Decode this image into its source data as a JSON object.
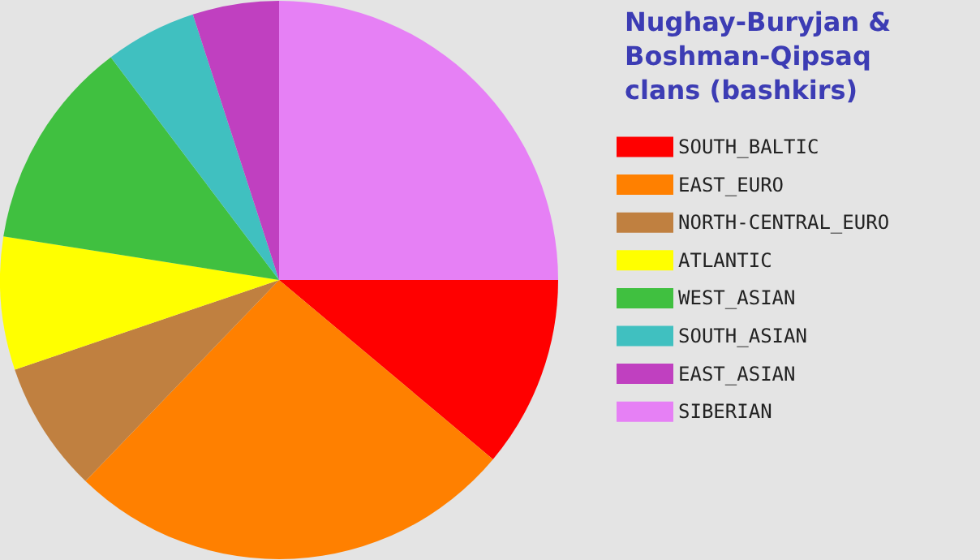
{
  "chart_data": {
    "type": "pie",
    "legend_title": "Nughay-Buryjan & Boshman-Qipsaq clans (bashkirs)",
    "legend": "right",
    "categories": [
      "SOUTH_BALTIC",
      "EAST_EURO",
      "NORTH-CENTRAL_EURO",
      "ATLANTIC",
      "WEST_ASIAN",
      "SOUTH_ASIAN",
      "EAST_ASIAN",
      "SIBERIAN"
    ],
    "values": [
      11.1,
      26.1,
      7.6,
      7.7,
      12.2,
      5.3,
      5.0,
      25.0
    ],
    "colors": [
      "#ff0000",
      "#ff8000",
      "#c08040",
      "#ffff00",
      "#40c040",
      "#40c0c0",
      "#c040c0",
      "#e680f5"
    ]
  }
}
